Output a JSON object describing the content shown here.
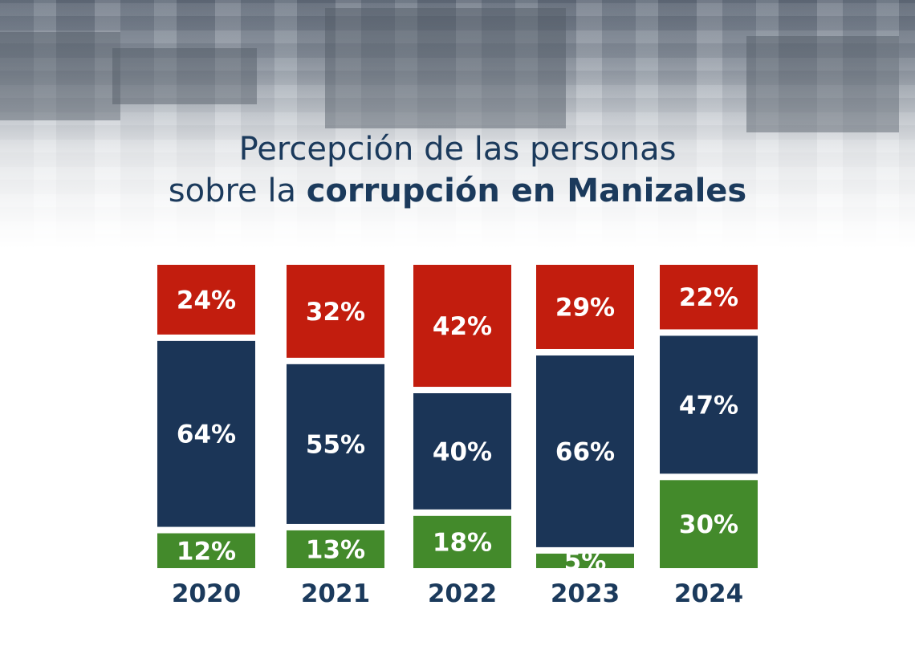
{
  "title": {
    "line1": "Percepción de las personas",
    "line2_regular": "sobre la",
    "line2_bold": "corrupción en Manizales"
  },
  "colors": {
    "red": "#c21d0e",
    "navy": "#1b3557",
    "green": "#438a2b",
    "text_navy": "#1b3a5c"
  },
  "chart_data": {
    "type": "bar",
    "stacked": true,
    "categories": [
      "2020",
      "2021",
      "2022",
      "2023",
      "2024"
    ],
    "series": [
      {
        "values": [
          24,
          32,
          42,
          29,
          22
        ],
        "labels": [
          "24%",
          "32%",
          "42%",
          "29%",
          "22%"
        ],
        "color": "#c21d0e",
        "position": "top"
      },
      {
        "values": [
          64,
          55,
          40,
          66,
          47
        ],
        "labels": [
          "64%",
          "55%",
          "40%",
          "66%",
          "47%"
        ],
        "color": "#1b3557",
        "position": "middle"
      },
      {
        "values": [
          12,
          13,
          18,
          5,
          30
        ],
        "labels": [
          "12%",
          "13%",
          "18%",
          "5%",
          "30%"
        ],
        "color": "#438a2b",
        "position": "bottom"
      }
    ],
    "title": "Percepción de las personas sobre la corrupción en Manizales",
    "xlabel": "",
    "ylabel": "",
    "grid": false,
    "legend": "none"
  }
}
